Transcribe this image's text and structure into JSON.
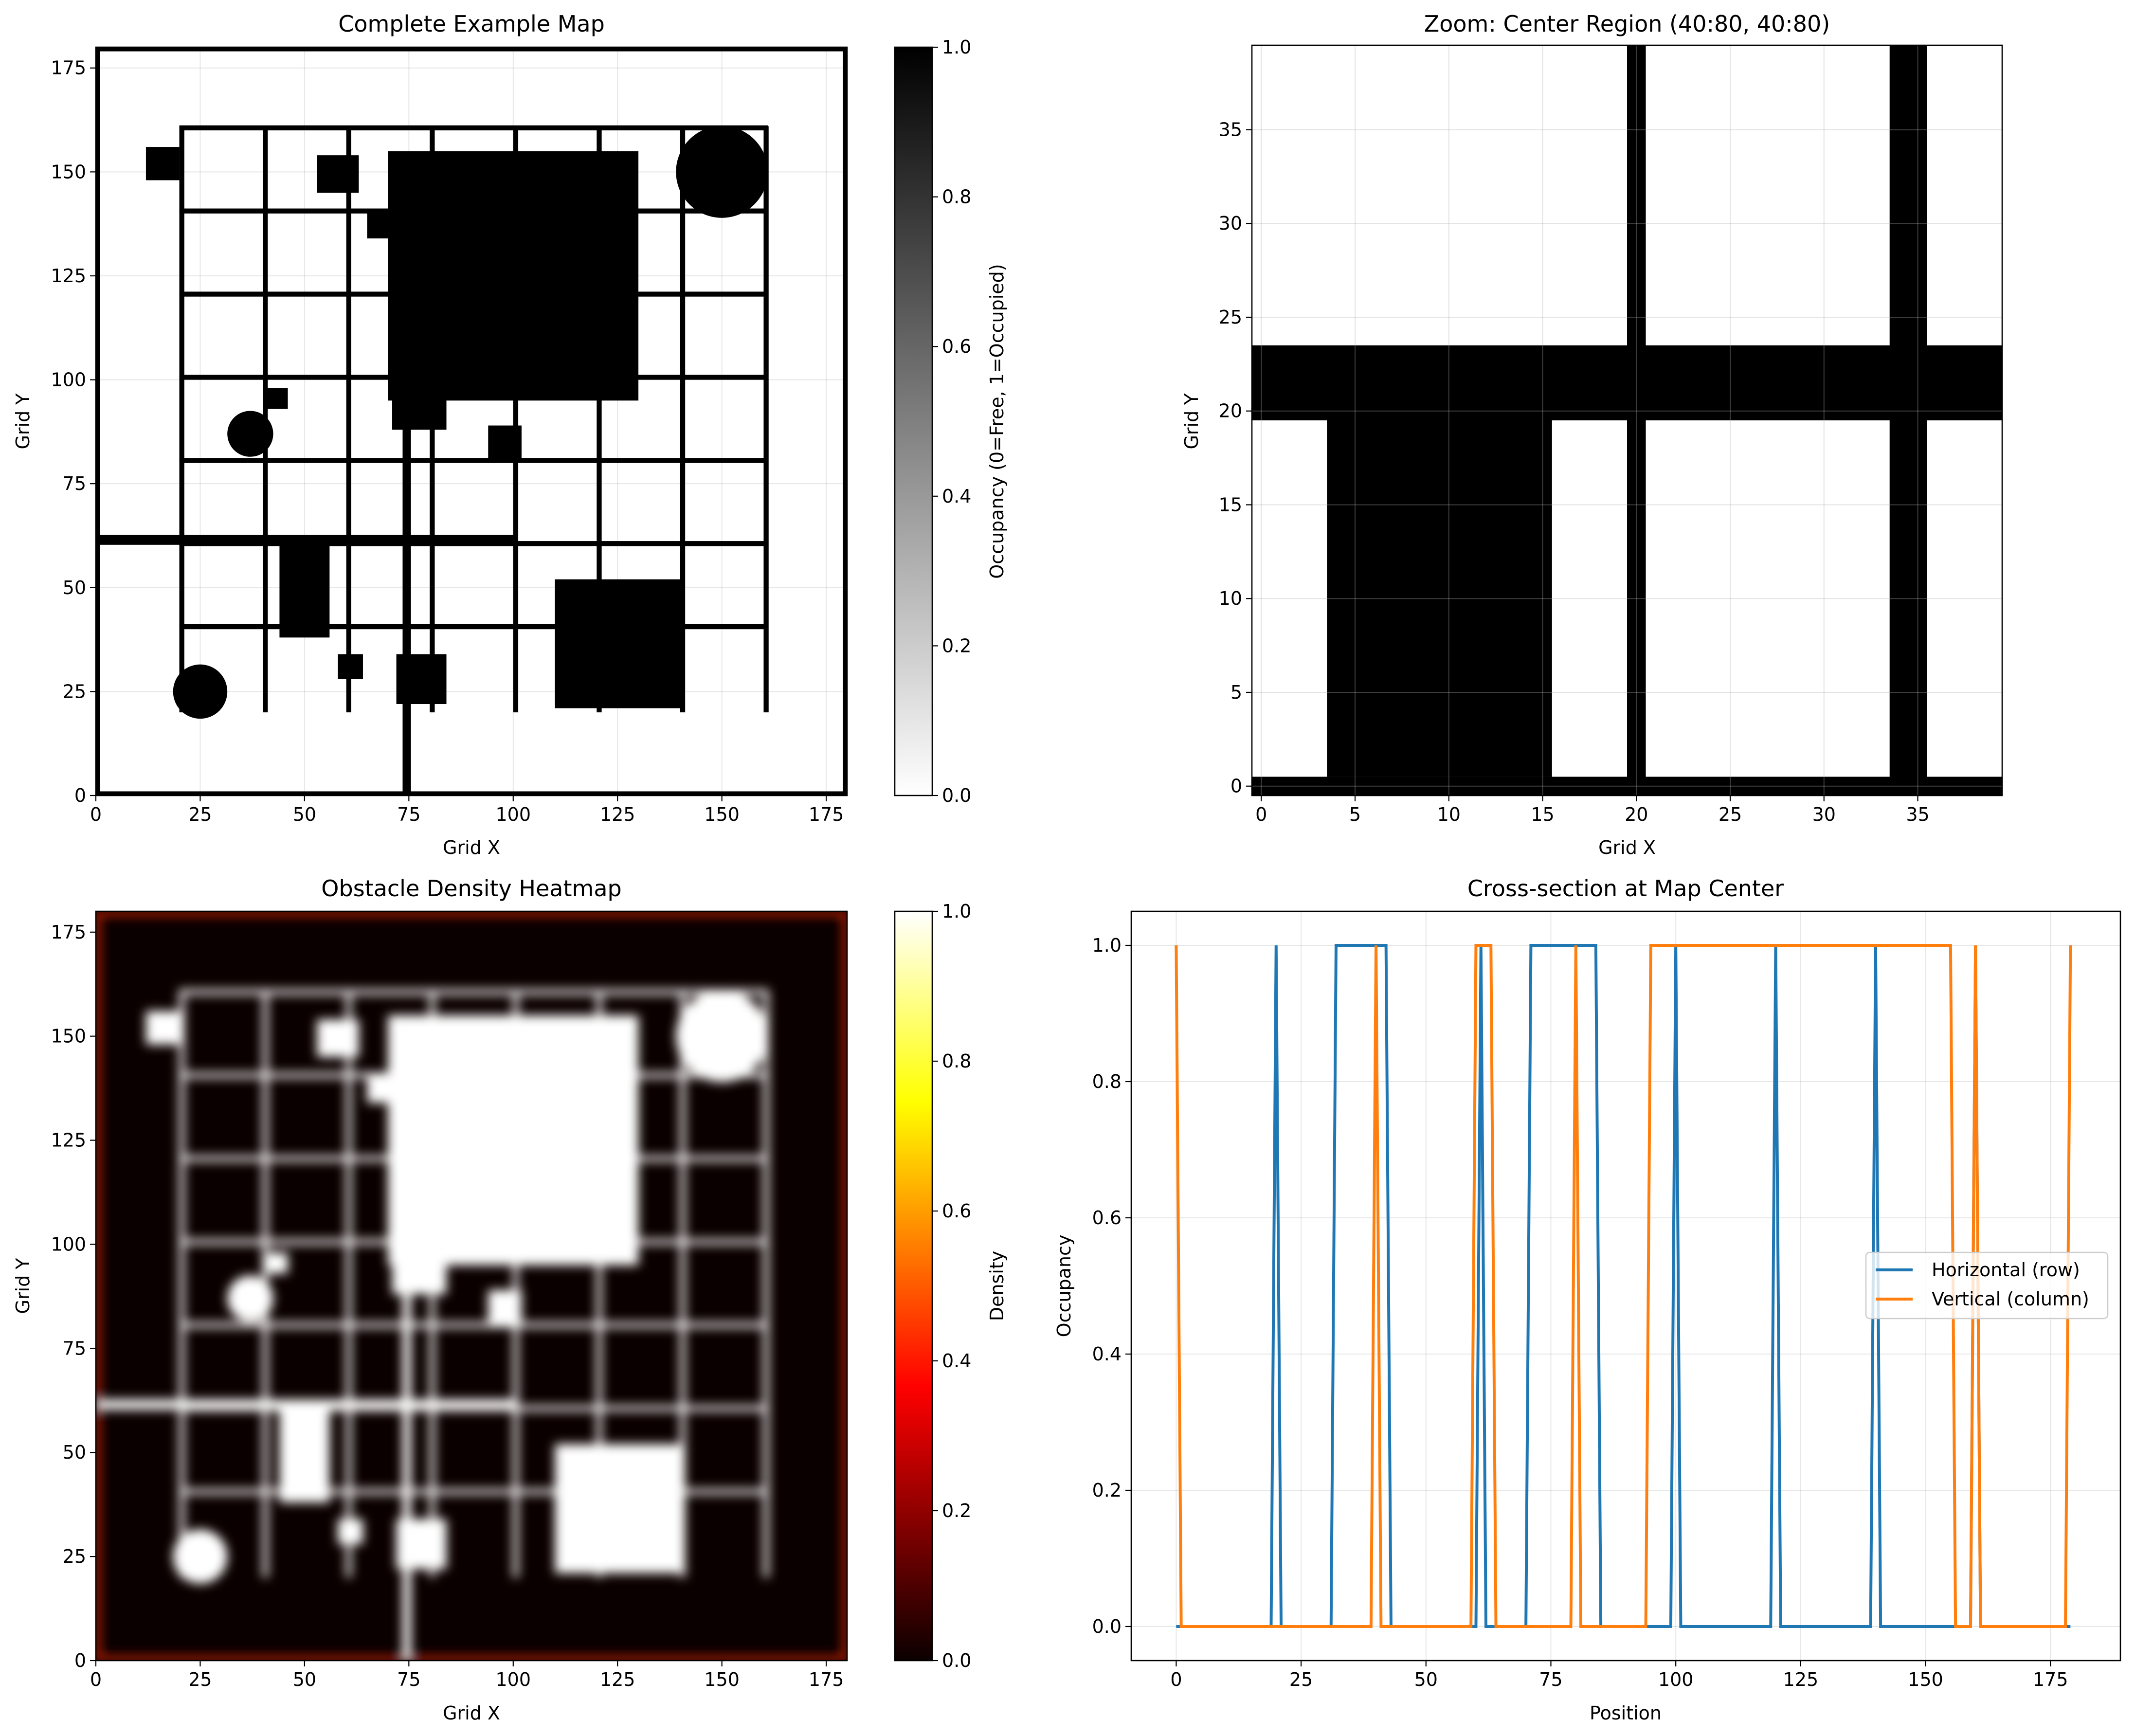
{
  "chart_data": [
    {
      "type": "heatmap",
      "title": "Complete Example Map",
      "xlabel": "Grid X",
      "ylabel": "Grid Y",
      "xlim": [
        0,
        180
      ],
      "ylim": [
        0,
        180
      ],
      "xticks": [
        0,
        25,
        50,
        75,
        100,
        125,
        150,
        175
      ],
      "yticks": [
        0,
        25,
        50,
        75,
        100,
        125,
        150,
        175
      ],
      "grid": true,
      "colormap": "gray_r",
      "colorbar": {
        "label": "Occupancy (0=Free, 1=Occupied)",
        "range": [
          0,
          1
        ],
        "ticks": [
          "0.0",
          "0.2",
          "0.4",
          "0.6",
          "0.8",
          "1.0"
        ]
      },
      "grid_lines_rows_y": [
        40,
        60,
        80,
        100,
        120,
        140,
        160
      ],
      "grid_lines_cols_x": [
        20,
        40,
        60,
        80,
        100,
        120,
        140,
        160
      ],
      "grid_lines_extent": [
        20,
        160
      ],
      "walls": [
        {
          "kind": "border",
          "value": 1
        },
        {
          "kind": "horizontal",
          "x": [
            0,
            101
          ],
          "y": 61.5
        },
        {
          "kind": "vertical",
          "x": 74.5,
          "y": [
            0,
            100
          ]
        }
      ],
      "rect_obstacles": [
        {
          "x": [
            70,
            130
          ],
          "y": [
            95,
            155
          ]
        },
        {
          "x": [
            110,
            141
          ],
          "y": [
            21,
            52
          ]
        },
        {
          "x": [
            44,
            56
          ],
          "y": [
            38,
            62
          ]
        },
        {
          "x": [
            12,
            20
          ],
          "y": [
            148,
            156
          ]
        },
        {
          "x": [
            53,
            63
          ],
          "y": [
            145,
            154
          ]
        },
        {
          "x": [
            65,
            70
          ],
          "y": [
            134,
            141
          ]
        },
        {
          "x": [
            41,
            46
          ],
          "y": [
            93,
            98
          ]
        },
        {
          "x": [
            94,
            102
          ],
          "y": [
            81,
            89
          ]
        },
        {
          "x": [
            71,
            84
          ],
          "y": [
            88,
            100
          ]
        },
        {
          "x": [
            58,
            64
          ],
          "y": [
            28,
            34
          ]
        },
        {
          "x": [
            72,
            84
          ],
          "y": [
            22,
            34
          ]
        }
      ],
      "circle_obstacles": [
        {
          "cx": 150,
          "cy": 150,
          "r": 11
        },
        {
          "cx": 37,
          "cy": 87,
          "r": 5.5
        },
        {
          "cx": 25,
          "cy": 25,
          "r": 6.5
        }
      ]
    },
    {
      "type": "heatmap",
      "title": "Zoom: Center Region (40:80, 40:80)",
      "xlabel": "Grid X",
      "ylabel": "Grid Y",
      "xlim": [
        -0.5,
        39.5
      ],
      "ylim": [
        -0.5,
        39.5
      ],
      "xticks": [
        0,
        5,
        10,
        15,
        20,
        25,
        30,
        35
      ],
      "yticks": [
        0,
        5,
        10,
        15,
        20,
        25,
        30,
        35
      ],
      "grid": true,
      "colormap": "gray_r",
      "occupied_rects": [
        {
          "x": [
            -0.5,
            39.5
          ],
          "y": [
            -0.5,
            0.5
          ]
        },
        {
          "x": [
            -0.5,
            39.5
          ],
          "y": [
            19.5,
            23.5
          ]
        },
        {
          "x": [
            3.5,
            15.5
          ],
          "y": [
            0.5,
            19.5
          ]
        },
        {
          "x": [
            19.5,
            20.5
          ],
          "y": [
            -0.5,
            39.5
          ]
        },
        {
          "x": [
            33.5,
            35.5
          ],
          "y": [
            -0.5,
            39.5
          ]
        }
      ]
    },
    {
      "type": "heatmap",
      "title": "Obstacle Density Heatmap",
      "xlabel": "Grid X",
      "ylabel": "Grid Y",
      "xlim": [
        0,
        180
      ],
      "ylim": [
        0,
        180
      ],
      "xticks": [
        0,
        25,
        50,
        75,
        100,
        125,
        150,
        175
      ],
      "yticks": [
        0,
        25,
        50,
        75,
        100,
        125,
        150,
        175
      ],
      "grid": false,
      "colormap": "hot",
      "colorbar": {
        "label": "Density",
        "range": [
          0,
          1
        ],
        "ticks": [
          "0.0",
          "0.2",
          "0.4",
          "0.6",
          "0.8",
          "1.0"
        ]
      },
      "note_source": "smoothed version of the Complete Example Map occupancy"
    },
    {
      "type": "line",
      "title": "Cross-section at Map Center",
      "xlabel": "Position",
      "ylabel": "Occupancy",
      "xlim": [
        -9,
        189
      ],
      "ylim": [
        -0.05,
        1.05
      ],
      "xticks": [
        0,
        25,
        50,
        75,
        100,
        125,
        150,
        175
      ],
      "yticks": [
        "0.0",
        "0.2",
        "0.4",
        "0.6",
        "0.8",
        "1.0"
      ],
      "grid": true,
      "legend_position": "center-right",
      "series": [
        {
          "name": "Horizontal (row)",
          "color": "#1f77b4",
          "high_ranges": [
            [
              20,
              20
            ],
            [
              32,
              42
            ],
            [
              61,
              61
            ],
            [
              71,
              84
            ],
            [
              100,
              100
            ],
            [
              120,
              120
            ],
            [
              140,
              140
            ],
            [
              160,
              160
            ]
          ],
          "x_max": 179
        },
        {
          "name": "Vertical (column)",
          "color": "#ff7f0e",
          "high_ranges": [
            [
              0,
              0
            ],
            [
              40,
              40
            ],
            [
              60,
              63
            ],
            [
              80,
              80
            ],
            [
              95,
              155
            ],
            [
              160,
              160
            ],
            [
              179,
              179
            ]
          ],
          "x_max": 179
        }
      ]
    }
  ]
}
